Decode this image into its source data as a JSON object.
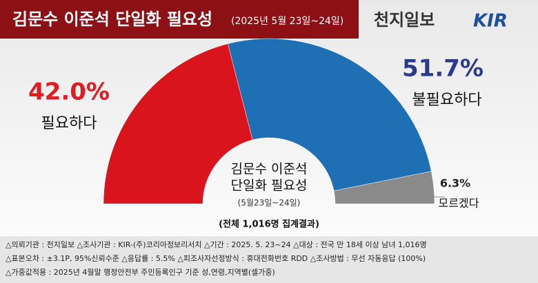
{
  "chart_data": {
    "type": "half-donut",
    "title": "김문수 이준석 단일화 필요성",
    "subtitle": "(2025년 5월 23일~24일)",
    "logo": "천지일보",
    "logo2": "KIR",
    "categories": [
      "필요하다",
      "불필요하다",
      "모르겠다"
    ],
    "values": [
      42.0,
      51.7,
      6.3
    ],
    "value_labels": [
      "42.0%",
      "51.7%",
      "6.3%"
    ],
    "colors": [
      "#d9141c",
      "#1f6fb5",
      "#8a8a8a"
    ],
    "label_colors": [
      "#e01b22",
      "#2b3b8c",
      "#222222"
    ],
    "center_title": [
      "김문수 이준석",
      "단일화 필요성"
    ],
    "center_subtitle": "(5월23일~24일)",
    "total_note": "(전체 1,016명 집계결과)",
    "notes": [
      "△의뢰기관 : 천지일보    △조사기관 : KIR-(주)코리아정보리서치    △기간 : 2025. 5. 23~24  △대상 : 전국 만 18세 이상 남녀 1,016명",
      "△표본오차 : ±3.1P, 95%신뢰수준  △응답률 : 5.5%  △피조사자선정방식 : 휴대전화번호 RDD  △조사방법 : 무선 자동응답 (100%)",
      "△가중값적용 : 2025년 4월말 행정안전부 주민등록인구 기준 성,연령,지역별(셀가중)"
    ]
  }
}
